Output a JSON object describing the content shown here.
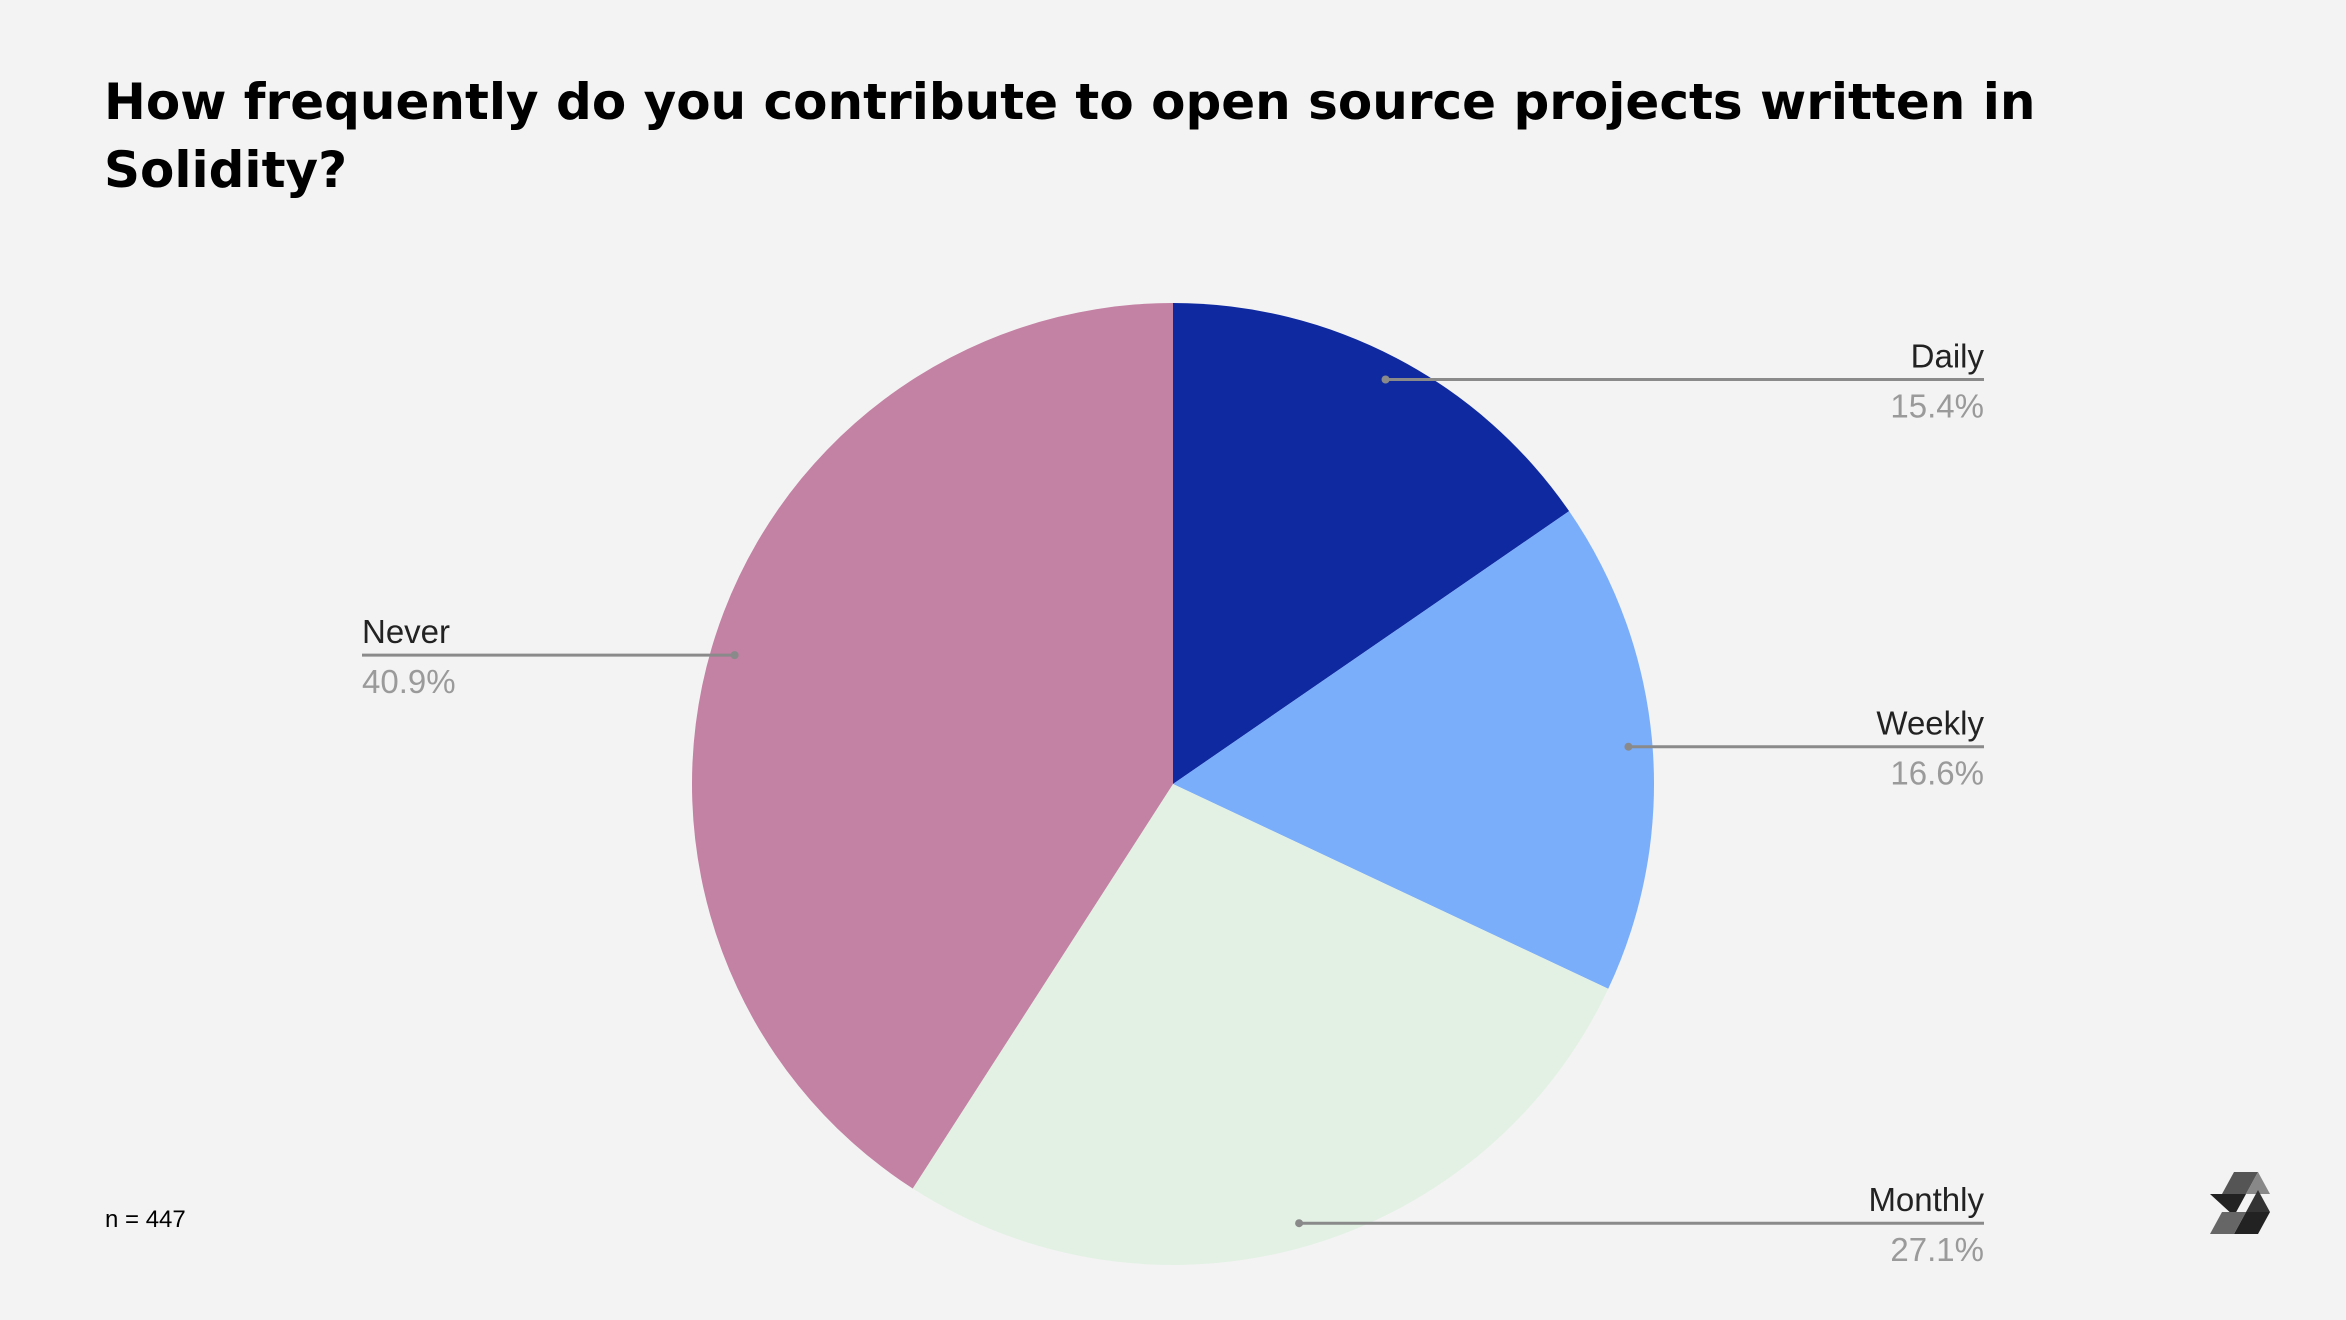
{
  "chart_data": {
    "type": "pie",
    "title": "How frequently do you contribute to open source projects written in Solidity?",
    "categories": [
      "Daily",
      "Weekly",
      "Monthly",
      "Never"
    ],
    "values": [
      15.4,
      16.6,
      27.1,
      40.9
    ],
    "value_labels": [
      "15.4%",
      "16.6%",
      "27.1%",
      "40.9%"
    ],
    "colors": [
      "#0f2aa0",
      "#7aadfa",
      "#e3f1e4",
      "#c381a3"
    ],
    "note": "n = 447"
  }
}
